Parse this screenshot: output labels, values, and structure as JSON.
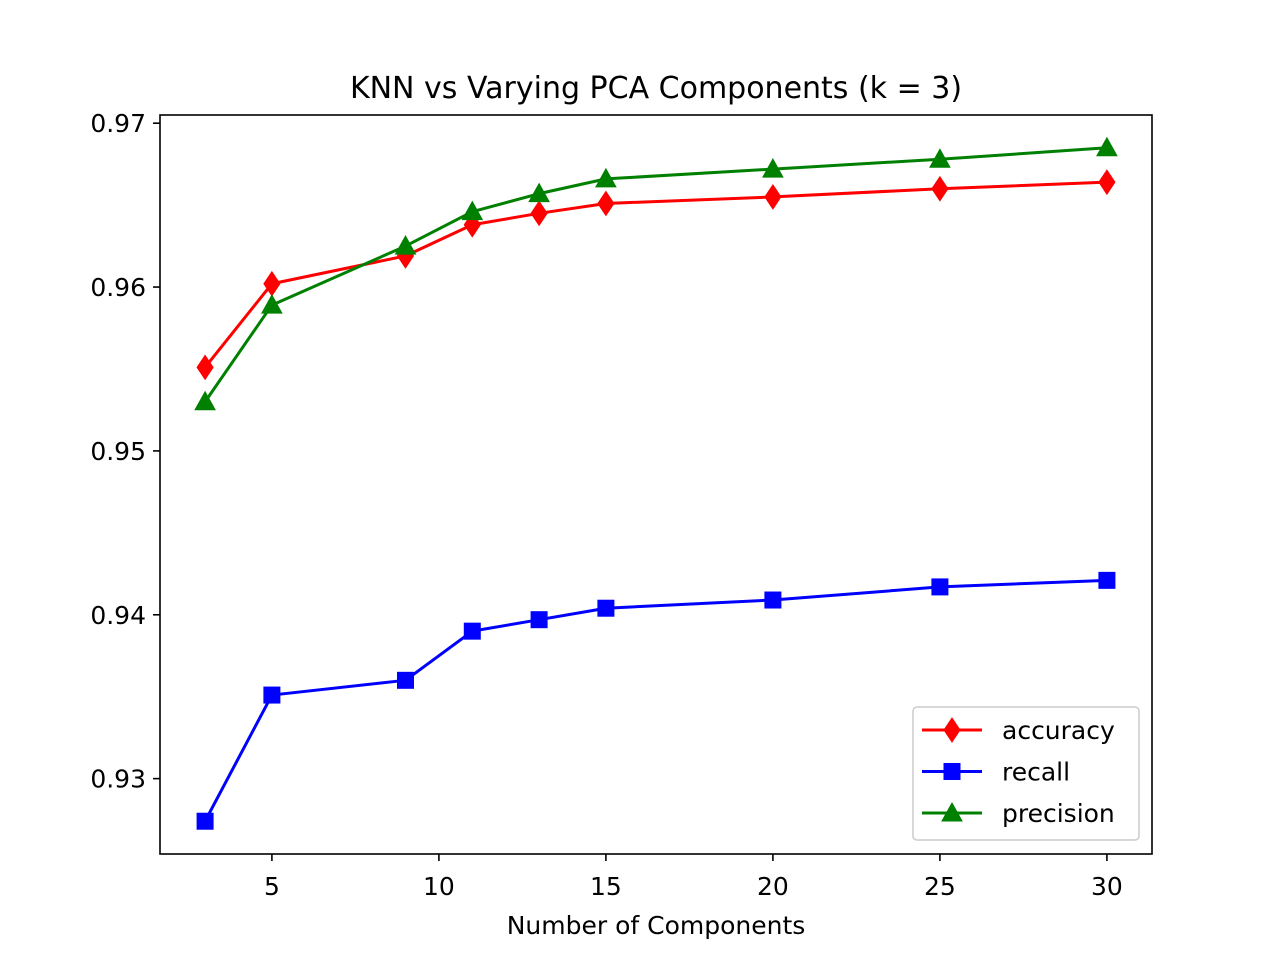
{
  "chart_data": {
    "type": "line",
    "title": "KNN vs Varying PCA Components (k = 3)",
    "xlabel": "Number of Components",
    "ylabel": "",
    "x": [
      3,
      5,
      9,
      11,
      13,
      15,
      20,
      25,
      30
    ],
    "xlim": [
      1.65,
      31.35
    ],
    "ylim": [
      0.9254,
      0.9705
    ],
    "xticks": [
      5,
      10,
      15,
      20,
      25,
      30
    ],
    "xtick_labels": [
      "5",
      "10",
      "15",
      "20",
      "25",
      "30"
    ],
    "yticks": [
      0.93,
      0.94,
      0.95,
      0.96,
      0.97
    ],
    "ytick_labels": [
      "0.93",
      "0.94",
      "0.95",
      "0.96",
      "0.97"
    ],
    "grid": false,
    "legend_position": "lower-right",
    "series": [
      {
        "name": "accuracy",
        "color": "#ff0000",
        "marker": "diamond",
        "values": [
          0.9551,
          0.9602,
          0.9619,
          0.9638,
          0.9645,
          0.9651,
          0.9655,
          0.966,
          0.9664
        ]
      },
      {
        "name": "recall",
        "color": "#0000ff",
        "marker": "square",
        "values": [
          0.9274,
          0.9351,
          0.936,
          0.939,
          0.9397,
          0.9404,
          0.9409,
          0.9417,
          0.9421
        ]
      },
      {
        "name": "precision",
        "color": "#008000",
        "marker": "triangle",
        "values": [
          0.953,
          0.9589,
          0.9625,
          0.9646,
          0.9657,
          0.9666,
          0.9672,
          0.9678,
          0.9685
        ]
      }
    ]
  }
}
